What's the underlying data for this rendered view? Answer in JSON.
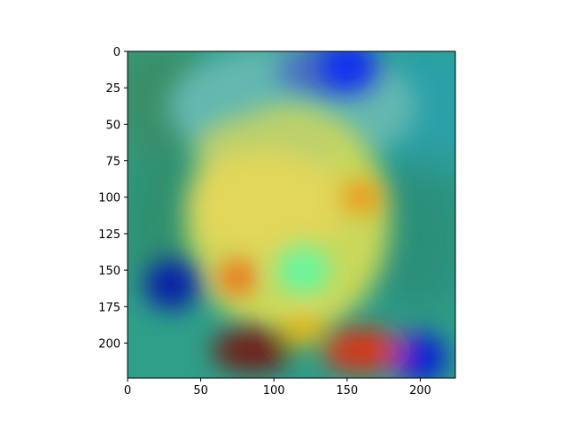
{
  "chart_data": {
    "type": "heatmap",
    "title": "",
    "xlabel": "",
    "ylabel": "",
    "xlim": [
      0,
      224
    ],
    "ylim": [
      224,
      0
    ],
    "xticks": [
      0,
      50,
      100,
      150,
      200
    ],
    "yticks": [
      0,
      25,
      50,
      75,
      100,
      125,
      150,
      175,
      200
    ],
    "image": "face photo overlaid with a jet-colormap attention heatmap",
    "colormap": "jet",
    "hotspots": [
      {
        "x": 160,
        "y": 100,
        "level": 0.75
      },
      {
        "x": 75,
        "y": 155,
        "level": 0.8
      },
      {
        "x": 85,
        "y": 205,
        "level": 1.0
      },
      {
        "x": 160,
        "y": 205,
        "level": 0.85
      },
      {
        "x": 120,
        "y": 190,
        "level": 0.7
      }
    ],
    "coldspots": [
      {
        "x": 30,
        "y": 160,
        "level": 0.05
      },
      {
        "x": 200,
        "y": 210,
        "level": 0.1
      },
      {
        "x": 150,
        "y": 10,
        "level": 0.15
      },
      {
        "x": 120,
        "y": 150,
        "level": 0.45
      }
    ],
    "grid": false
  }
}
